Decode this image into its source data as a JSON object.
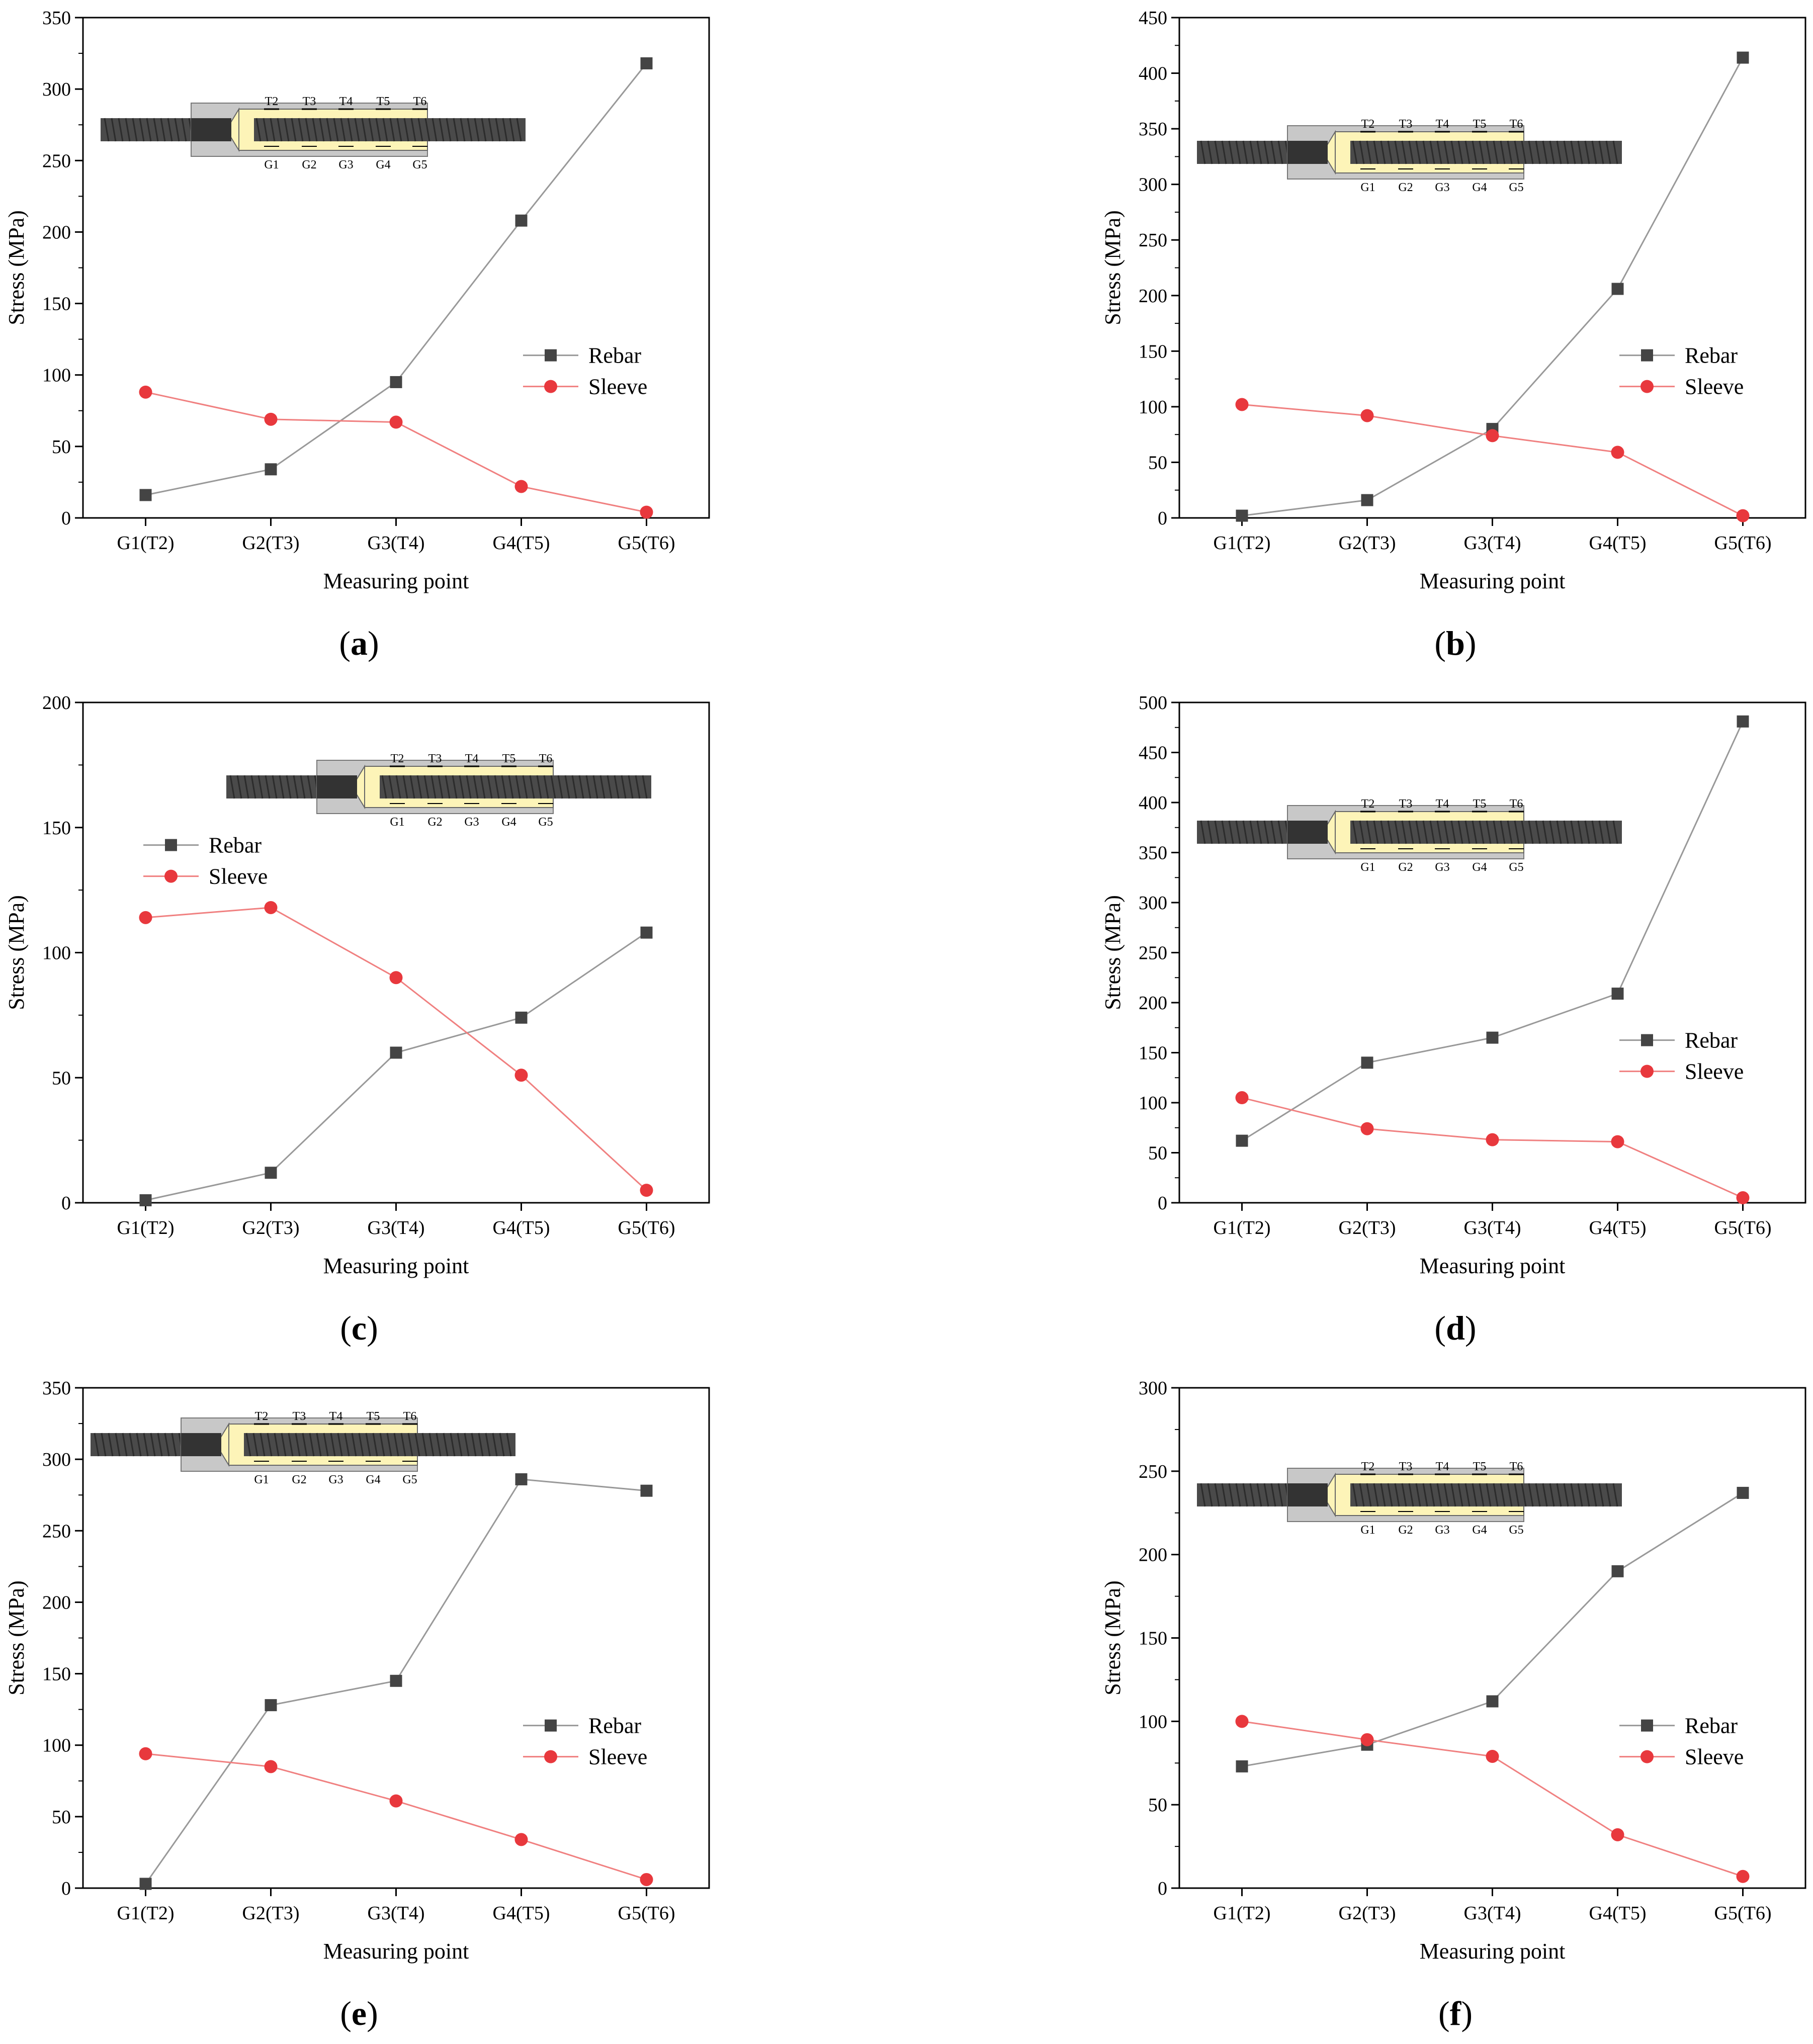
{
  "panels": [
    {
      "caption": "a",
      "legend_pos": "right",
      "chart_data": {
        "type": "line",
        "title": "",
        "xlabel": "Measuring point",
        "ylabel": "Stress (MPa)",
        "categories": [
          "G1(T2)",
          "G2(T3)",
          "G3(T4)",
          "G4(T5)",
          "G5(T6)"
        ],
        "ylim": [
          0,
          350
        ],
        "yticks": [
          0,
          50,
          100,
          150,
          200,
          250,
          300,
          350
        ],
        "series": [
          {
            "name": "Rebar",
            "marker": "square",
            "color": "#444444",
            "line_color": "#999999",
            "values": [
              16,
              34,
              95,
              208,
              318
            ]
          },
          {
            "name": "Sleeve",
            "marker": "circle",
            "color": "#e8383d",
            "line_color": "#f08080",
            "values": [
              88,
              69,
              67,
              22,
              4
            ]
          }
        ]
      },
      "inset": {
        "top_labels": [
          "T2",
          "T3",
          "T4",
          "T5",
          "T6"
        ],
        "bottom_labels": [
          "G1",
          "G2",
          "G3",
          "G4",
          "G5"
        ]
      }
    },
    {
      "caption": "b",
      "legend_pos": "right",
      "chart_data": {
        "type": "line",
        "title": "",
        "xlabel": "Measuring point",
        "ylabel": "Stress (MPa)",
        "categories": [
          "G1(T2)",
          "G2(T3)",
          "G3(T4)",
          "G4(T5)",
          "G5(T6)"
        ],
        "ylim": [
          0,
          450
        ],
        "yticks": [
          0,
          50,
          100,
          150,
          200,
          250,
          300,
          350,
          400,
          450
        ],
        "series": [
          {
            "name": "Rebar",
            "marker": "square",
            "color": "#444444",
            "line_color": "#999999",
            "values": [
              2,
              16,
              80,
              206,
              414
            ]
          },
          {
            "name": "Sleeve",
            "marker": "circle",
            "color": "#e8383d",
            "line_color": "#f08080",
            "values": [
              102,
              92,
              74,
              59,
              2
            ]
          }
        ]
      },
      "inset": {
        "top_labels": [
          "T2",
          "T3",
          "T4",
          "T5",
          "T6"
        ],
        "bottom_labels": [
          "G1",
          "G2",
          "G3",
          "G4",
          "G5"
        ]
      }
    },
    {
      "caption": "c",
      "legend_pos": "left",
      "chart_data": {
        "type": "line",
        "title": "",
        "xlabel": "Measuring point",
        "ylabel": "Stress (MPa)",
        "categories": [
          "G1(T2)",
          "G2(T3)",
          "G3(T4)",
          "G4(T5)",
          "G5(T6)"
        ],
        "ylim": [
          0,
          200
        ],
        "yticks": [
          0,
          50,
          100,
          150,
          200
        ],
        "series": [
          {
            "name": "Rebar",
            "marker": "square",
            "color": "#444444",
            "line_color": "#999999",
            "values": [
              1,
              12,
              60,
              74,
              108
            ]
          },
          {
            "name": "Sleeve",
            "marker": "circle",
            "color": "#e8383d",
            "line_color": "#f08080",
            "values": [
              114,
              118,
              90,
              51,
              5
            ]
          }
        ]
      },
      "inset": {
        "top_labels": [
          "T2",
          "T3",
          "T4",
          "T5",
          "T6"
        ],
        "bottom_labels": [
          "G1",
          "G2",
          "G3",
          "G4",
          "G5"
        ]
      }
    },
    {
      "caption": "d",
      "legend_pos": "right",
      "chart_data": {
        "type": "line",
        "title": "",
        "xlabel": "Measuring point",
        "ylabel": "Stress (MPa)",
        "categories": [
          "G1(T2)",
          "G2(T3)",
          "G3(T4)",
          "G4(T5)",
          "G5(T6)"
        ],
        "ylim": [
          0,
          500
        ],
        "yticks": [
          0,
          50,
          100,
          150,
          200,
          250,
          300,
          350,
          400,
          450,
          500
        ],
        "series": [
          {
            "name": "Rebar",
            "marker": "square",
            "color": "#444444",
            "line_color": "#999999",
            "values": [
              62,
              140,
              165,
              209,
              481
            ]
          },
          {
            "name": "Sleeve",
            "marker": "circle",
            "color": "#e8383d",
            "line_color": "#f08080",
            "values": [
              105,
              74,
              63,
              61,
              5
            ]
          }
        ]
      },
      "inset": {
        "top_labels": [
          "T2",
          "T3",
          "T4",
          "T5",
          "T6"
        ],
        "bottom_labels": [
          "G1",
          "G2",
          "G3",
          "G4",
          "G5"
        ]
      }
    },
    {
      "caption": "e",
      "legend_pos": "right",
      "chart_data": {
        "type": "line",
        "title": "",
        "xlabel": "Measuring point",
        "ylabel": "Stress (MPa)",
        "categories": [
          "G1(T2)",
          "G2(T3)",
          "G3(T4)",
          "G4(T5)",
          "G5(T6)"
        ],
        "ylim": [
          0,
          350
        ],
        "yticks": [
          0,
          50,
          100,
          150,
          200,
          250,
          300,
          350
        ],
        "series": [
          {
            "name": "Rebar",
            "marker": "square",
            "color": "#444444",
            "line_color": "#999999",
            "values": [
              3,
              128,
              145,
              286,
              278
            ]
          },
          {
            "name": "Sleeve",
            "marker": "circle",
            "color": "#e8383d",
            "line_color": "#f08080",
            "values": [
              94,
              85,
              61,
              34,
              6
            ]
          }
        ]
      },
      "inset": {
        "top_labels": [
          "T2",
          "T3",
          "T4",
          "T5",
          "T6"
        ],
        "bottom_labels": [
          "G1",
          "G2",
          "G3",
          "G4",
          "G5"
        ]
      }
    },
    {
      "caption": "f",
      "legend_pos": "right",
      "chart_data": {
        "type": "line",
        "title": "",
        "xlabel": "Measuring point",
        "ylabel": "Stress (MPa)",
        "categories": [
          "G1(T2)",
          "G2(T3)",
          "G3(T4)",
          "G4(T5)",
          "G5(T6)"
        ],
        "ylim": [
          0,
          300
        ],
        "yticks": [
          0,
          50,
          100,
          150,
          200,
          250,
          300
        ],
        "series": [
          {
            "name": "Rebar",
            "marker": "square",
            "color": "#444444",
            "line_color": "#999999",
            "values": [
              73,
              86,
              112,
              190,
              237
            ]
          },
          {
            "name": "Sleeve",
            "marker": "circle",
            "color": "#e8383d",
            "line_color": "#f08080",
            "values": [
              100,
              89,
              79,
              32,
              7
            ]
          }
        ]
      },
      "inset": {
        "top_labels": [
          "T2",
          "T3",
          "T4",
          "T5",
          "T6"
        ],
        "bottom_labels": [
          "G1",
          "G2",
          "G3",
          "G4",
          "G5"
        ]
      }
    }
  ]
}
